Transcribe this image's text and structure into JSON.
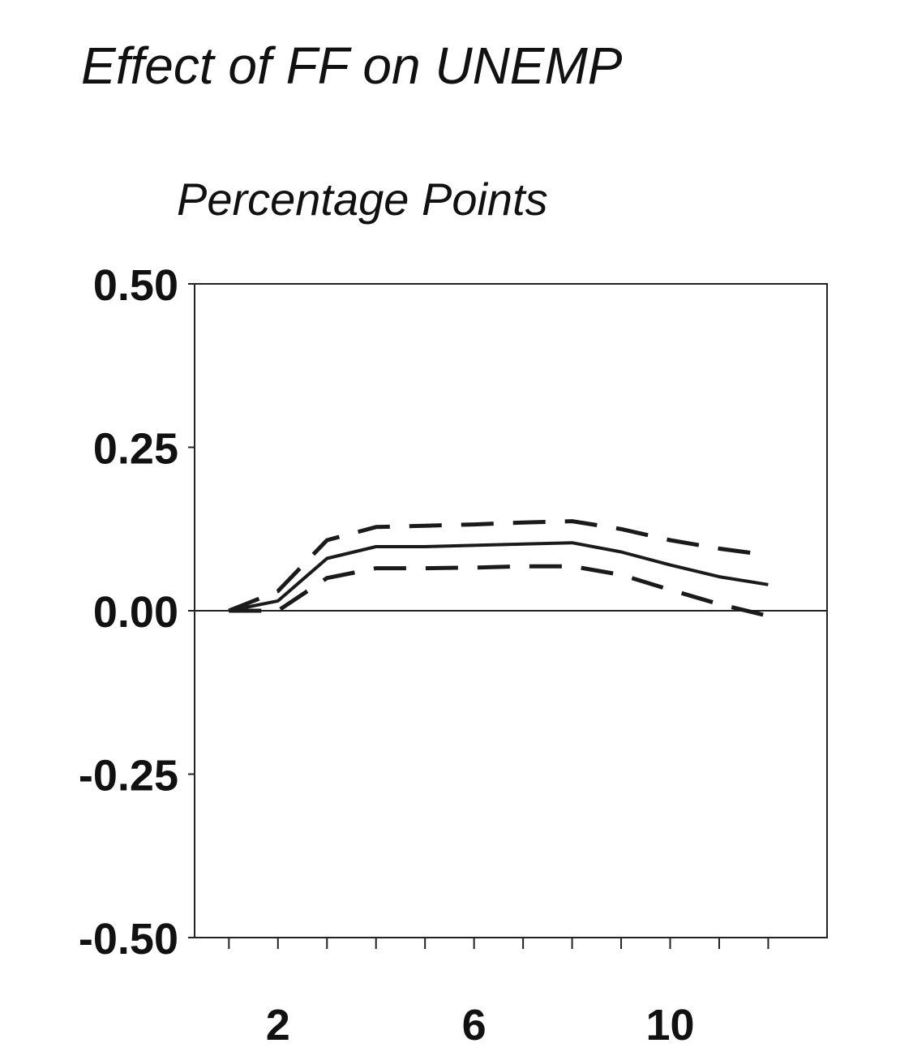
{
  "chart_data": {
    "type": "line",
    "title": "Effect of FF on UNEMP",
    "subtitle": "Percentage Points",
    "xlabel": "",
    "ylabel": "",
    "x": [
      1,
      2,
      3,
      4,
      5,
      6,
      7,
      8,
      9,
      10,
      11,
      12
    ],
    "xlim": [
      0.3,
      13.2
    ],
    "ylim": [
      -0.5,
      0.5
    ],
    "yticks": [
      {
        "value": 0.5,
        "label": "0.50"
      },
      {
        "value": 0.25,
        "label": "0.25"
      },
      {
        "value": 0.0,
        "label": "0.00"
      },
      {
        "value": -0.25,
        "label": "-0.25"
      },
      {
        "value": -0.5,
        "label": "-0.50"
      }
    ],
    "xtick_marks": [
      1,
      2,
      3,
      4,
      5,
      6,
      7,
      8,
      9,
      10,
      11,
      12
    ],
    "xtick_labels": [
      {
        "value": 2,
        "label": "2"
      },
      {
        "value": 6,
        "label": "6"
      },
      {
        "value": 10,
        "label": "10"
      }
    ],
    "zero_line": true,
    "grid": false,
    "series": [
      {
        "style": "solid",
        "values": [
          0.0,
          0.015,
          0.08,
          0.098,
          0.098,
          0.1,
          0.102,
          0.104,
          0.09,
          0.07,
          0.052,
          0.04
        ]
      },
      {
        "style": "dashed",
        "values": [
          0.0,
          0.03,
          0.108,
          0.128,
          0.13,
          0.132,
          0.135,
          0.137,
          0.125,
          0.108,
          0.095,
          0.085
        ]
      },
      {
        "style": "dashed",
        "values": [
          0.0,
          0.0,
          0.05,
          0.065,
          0.065,
          0.066,
          0.068,
          0.068,
          0.055,
          0.032,
          0.01,
          -0.008
        ]
      }
    ],
    "colors": {
      "line": "#1a1a1a",
      "axis": "#222222"
    }
  }
}
